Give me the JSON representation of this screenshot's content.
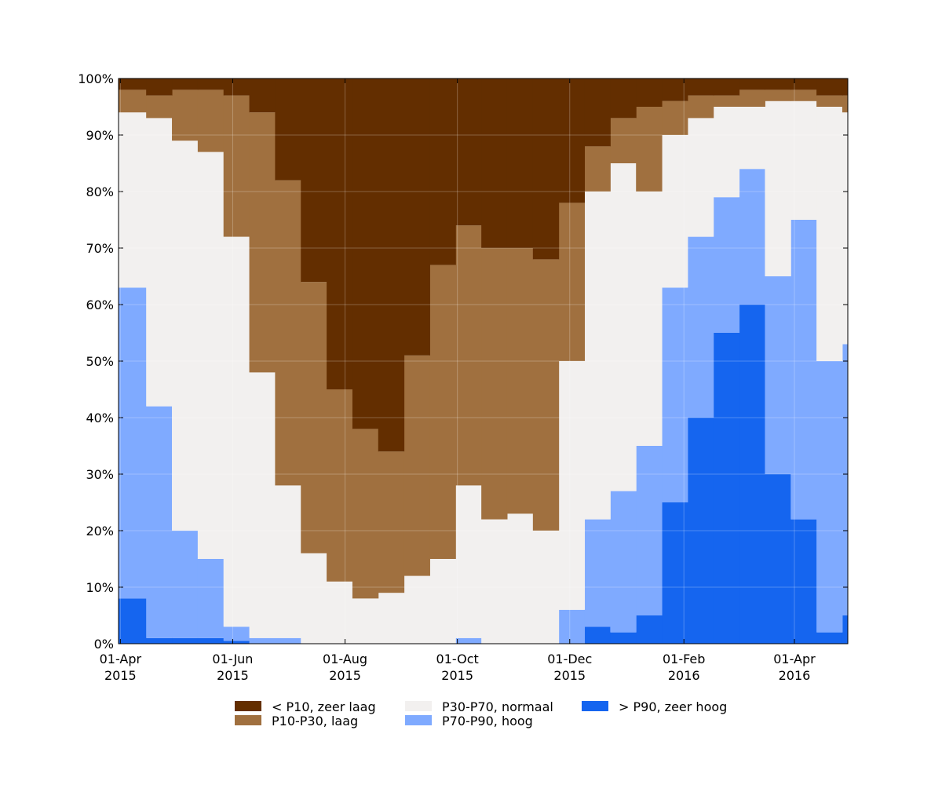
{
  "chart_data": {
    "type": "stacked-step-area",
    "x": [
      "2015-04-01",
      "2015-04-15",
      "2015-04-29",
      "2015-05-13",
      "2015-05-27",
      "2015-06-10",
      "2015-06-24",
      "2015-07-08",
      "2015-07-22",
      "2015-08-05",
      "2015-08-19",
      "2015-09-02",
      "2015-09-16",
      "2015-09-30",
      "2015-10-14",
      "2015-10-28",
      "2015-11-11",
      "2015-11-25",
      "2015-12-09",
      "2015-12-23",
      "2016-01-06",
      "2016-01-20",
      "2016-02-03",
      "2016-02-17",
      "2016-03-02",
      "2016-03-16",
      "2016-03-30",
      "2016-04-13",
      "2016-04-27"
    ],
    "series": [
      {
        "name": "< P10, zeer laag",
        "color": "#632e00",
        "values": [
          2,
          3,
          2,
          2,
          3,
          6,
          18,
          36,
          55,
          62,
          66,
          49,
          33,
          26,
          30,
          30,
          32,
          22,
          12,
          7,
          5,
          4,
          3,
          3,
          2,
          2,
          2,
          3,
          3
        ]
      },
      {
        "name": "P10-P30, laag",
        "color": "#a0703f",
        "values": [
          4,
          4,
          9,
          11,
          25,
          46,
          54,
          48,
          34,
          30,
          25,
          39,
          52,
          46,
          48,
          47,
          48,
          28,
          8,
          8,
          15,
          6,
          4,
          2,
          3,
          2,
          2,
          2,
          3
        ]
      },
      {
        "name": "P30-P70, normaal",
        "color": "#f2f0ef",
        "values": [
          31,
          51,
          69,
          72,
          69,
          47,
          27,
          16,
          11,
          8,
          9,
          12,
          15,
          27,
          22,
          23,
          20,
          44,
          58,
          58,
          45,
          27,
          21,
          16,
          11,
          31,
          21,
          45,
          41
        ]
      },
      {
        "name": "P70-P90, hoog",
        "color": "#7faaff",
        "values": [
          55,
          41,
          19,
          14,
          2.5,
          1,
          1,
          0,
          0,
          0,
          0,
          0,
          0,
          1,
          0,
          0,
          0,
          6,
          19,
          25,
          30,
          38,
          32,
          24,
          24,
          35,
          53,
          48,
          48
        ]
      },
      {
        "name": "> P90, zeer hoog",
        "color": "#1565ef",
        "values": [
          8,
          1,
          1,
          1,
          0.5,
          0,
          0,
          0,
          0,
          0,
          0,
          0,
          0,
          0,
          0,
          0,
          0,
          0,
          3,
          2,
          5,
          25,
          40,
          55,
          60,
          30,
          22,
          2,
          5
        ]
      }
    ],
    "xlim": [
      "2015-03-31",
      "2016-04-30"
    ],
    "xticks": [
      {
        "value": "2015-04-01",
        "label": [
          "01-Apr",
          "2015"
        ]
      },
      {
        "value": "2015-06-01",
        "label": [
          "01-Jun",
          "2015"
        ]
      },
      {
        "value": "2015-08-01",
        "label": [
          "01-Aug",
          "2015"
        ]
      },
      {
        "value": "2015-10-01",
        "label": [
          "01-Oct",
          "2015"
        ]
      },
      {
        "value": "2015-12-01",
        "label": [
          "01-Dec",
          "2015"
        ]
      },
      {
        "value": "2016-02-01",
        "label": [
          "01-Feb",
          "2016"
        ]
      },
      {
        "value": "2016-04-01",
        "label": [
          "01-Apr",
          "2016"
        ]
      }
    ],
    "ylim": [
      0,
      100
    ],
    "yticks": [
      {
        "value": 0,
        "label": "0%"
      },
      {
        "value": 10,
        "label": "10%"
      },
      {
        "value": 20,
        "label": "20%"
      },
      {
        "value": 30,
        "label": "30%"
      },
      {
        "value": 40,
        "label": "40%"
      },
      {
        "value": 50,
        "label": "50%"
      },
      {
        "value": 60,
        "label": "60%"
      },
      {
        "value": 70,
        "label": "70%"
      },
      {
        "value": 80,
        "label": "80%"
      },
      {
        "value": 90,
        "label": "90%"
      },
      {
        "value": 100,
        "label": "100%"
      }
    ],
    "grid": true
  }
}
